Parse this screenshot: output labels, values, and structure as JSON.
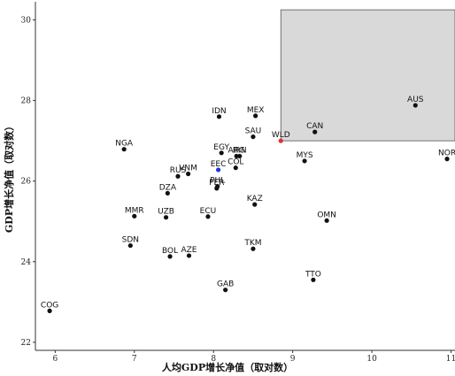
{
  "chart_data": {
    "type": "scatter",
    "xlabel": "人均GDP增长净值（取对数）",
    "ylabel": "GDP增长净值（取对数）",
    "xlim": [
      5.75,
      11.05
    ],
    "ylim": [
      21.8,
      30.45
    ],
    "xticks": [
      6,
      7,
      8,
      9,
      10,
      11
    ],
    "yticks": [
      22,
      24,
      26,
      28,
      30
    ],
    "grid": false,
    "highlight_rect": {
      "x": [
        8.85,
        11.05
      ],
      "y": [
        27.0,
        30.25
      ],
      "fill": "#d9d9d9"
    },
    "colors": {
      "default": "#111111",
      "blue": "#2233dd",
      "red": "#e03030",
      "axis": "#333333"
    },
    "points": [
      {
        "label": "COG",
        "x": 5.93,
        "y": 22.78
      },
      {
        "label": "NGA",
        "x": 6.87,
        "y": 26.79
      },
      {
        "label": "MMR",
        "x": 7.0,
        "y": 25.13
      },
      {
        "label": "SDN",
        "x": 6.95,
        "y": 24.4
      },
      {
        "label": "UZB",
        "x": 7.4,
        "y": 25.1
      },
      {
        "label": "BOL",
        "x": 7.45,
        "y": 24.13
      },
      {
        "label": "AZE",
        "x": 7.69,
        "y": 24.15
      },
      {
        "label": "DZA",
        "x": 7.42,
        "y": 25.7
      },
      {
        "label": "RUS",
        "x": 7.55,
        "y": 26.12
      },
      {
        "label": "VNM",
        "x": 7.68,
        "y": 26.18
      },
      {
        "label": "ECU",
        "x": 7.93,
        "y": 25.12
      },
      {
        "label": "PER",
        "x": 8.04,
        "y": 25.82
      },
      {
        "label": "PHL",
        "x": 8.05,
        "y": 25.87
      },
      {
        "label": "EEC",
        "x": 8.06,
        "y": 26.28,
        "color": "blue"
      },
      {
        "label": "IDN",
        "x": 8.07,
        "y": 27.6
      },
      {
        "label": "EGY",
        "x": 8.1,
        "y": 26.7
      },
      {
        "label": "ARG",
        "x": 8.29,
        "y": 26.62
      },
      {
        "label": "IRN",
        "x": 8.33,
        "y": 26.62
      },
      {
        "label": "COL",
        "x": 8.28,
        "y": 26.33
      },
      {
        "label": "SAU",
        "x": 8.5,
        "y": 27.1
      },
      {
        "label": "MEX",
        "x": 8.53,
        "y": 27.62
      },
      {
        "label": "KAZ",
        "x": 8.52,
        "y": 25.42
      },
      {
        "label": "TKM",
        "x": 8.5,
        "y": 24.32
      },
      {
        "label": "GAB",
        "x": 8.15,
        "y": 23.3
      },
      {
        "label": "WLD",
        "x": 8.85,
        "y": 27.0,
        "color": "red"
      },
      {
        "label": "MYS",
        "x": 9.15,
        "y": 26.5
      },
      {
        "label": "CAN",
        "x": 9.28,
        "y": 27.22
      },
      {
        "label": "OMN",
        "x": 9.43,
        "y": 25.02
      },
      {
        "label": "TTO",
        "x": 9.26,
        "y": 23.55
      },
      {
        "label": "AUS",
        "x": 10.55,
        "y": 27.88
      },
      {
        "label": "NOR",
        "x": 10.95,
        "y": 26.55
      }
    ]
  }
}
